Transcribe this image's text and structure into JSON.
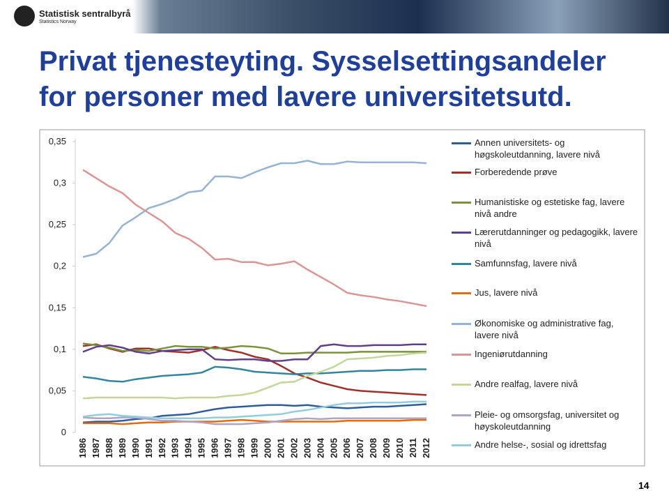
{
  "header": {
    "org": "Statistisk sentralbyrå",
    "org_en": "Statistics Norway"
  },
  "title": [
    "Privat tjenesteyting. Sysselsettingsandeler",
    "for personer med lavere universitetsutd."
  ],
  "page_number": "14",
  "chart_data": {
    "type": "line",
    "categories": [
      "1986",
      "1987",
      "1988",
      "1989",
      "1990",
      "1991",
      "1992",
      "1993",
      "1994",
      "1995",
      "1996",
      "1997",
      "1998",
      "1999",
      "2000",
      "2001",
      "2002",
      "2003",
      "2004",
      "2005",
      "2006",
      "2007",
      "2008",
      "2009",
      "2010",
      "2011",
      "2012"
    ],
    "ylim": [
      0,
      0.35
    ],
    "yticks": [
      0,
      {
        "value": 0.05,
        "label": "0,05"
      },
      {
        "value": 0.1,
        "label": "0,1"
      },
      {
        "value": 0.15,
        "label": "0,15"
      },
      {
        "value": 0.2,
        "label": "0,2"
      },
      {
        "value": 0.25,
        "label": "0,25"
      },
      {
        "value": 0.3,
        "label": "0,3"
      },
      {
        "value": 0.35,
        "label": "0,35"
      }
    ],
    "grid": false,
    "legend": "right",
    "series": [
      {
        "name": "Annen universitets- og høgskoleutdanning, lavere nivå",
        "color": "#2e5c9a",
        "values": [
          0.012,
          0.013,
          0.013,
          0.014,
          0.016,
          0.017,
          0.02,
          0.021,
          0.022,
          0.025,
          0.028,
          0.03,
          0.031,
          0.032,
          0.033,
          0.033,
          0.032,
          0.033,
          0.031,
          0.03,
          0.029,
          0.03,
          0.031,
          0.031,
          0.032,
          0.033,
          0.034
        ]
      },
      {
        "name": "Forberedende prøve",
        "color": "#a0302a",
        "values": [
          0.104,
          0.106,
          0.101,
          0.097,
          0.101,
          0.101,
          0.098,
          0.097,
          0.096,
          0.099,
          0.103,
          0.099,
          0.096,
          0.091,
          0.088,
          0.08,
          0.071,
          0.066,
          0.06,
          0.056,
          0.052,
          0.05,
          0.049,
          0.048,
          0.047,
          0.046,
          0.045
        ]
      },
      {
        "name": "Humanistiske og estetiske fag, lavere nivå andre",
        "color": "#77933c",
        "values": [
          0.107,
          0.105,
          0.102,
          0.098,
          0.099,
          0.098,
          0.101,
          0.104,
          0.103,
          0.103,
          0.101,
          0.102,
          0.104,
          0.103,
          0.101,
          0.095,
          0.095,
          0.096,
          0.096,
          0.096,
          0.096,
          0.097,
          0.097,
          0.097,
          0.097,
          0.097,
          0.097
        ]
      },
      {
        "name": "Lærerutdanninger og pedagogikk, lavere nivå",
        "color": "#5f3f8a",
        "values": [
          0.097,
          0.103,
          0.105,
          0.102,
          0.097,
          0.095,
          0.098,
          0.099,
          0.1,
          0.1,
          0.088,
          0.087,
          0.088,
          0.088,
          0.086,
          0.086,
          0.088,
          0.088,
          0.104,
          0.106,
          0.104,
          0.104,
          0.105,
          0.105,
          0.105,
          0.106,
          0.106
        ]
      },
      {
        "name": "Samfunnsfag, lavere nivå",
        "color": "#31859c",
        "values": [
          0.067,
          0.065,
          0.062,
          0.061,
          0.064,
          0.066,
          0.068,
          0.069,
          0.07,
          0.072,
          0.079,
          0.078,
          0.076,
          0.073,
          0.072,
          0.071,
          0.07,
          0.071,
          0.071,
          0.072,
          0.073,
          0.074,
          0.074,
          0.075,
          0.075,
          0.076,
          0.076
        ]
      },
      {
        "name": "Jus, lavere nivå",
        "color": "#e46c0a",
        "values": [
          0.011,
          0.011,
          0.011,
          0.01,
          0.011,
          0.012,
          0.012,
          0.013,
          0.013,
          0.013,
          0.013,
          0.014,
          0.015,
          0.014,
          0.013,
          0.013,
          0.013,
          0.013,
          0.013,
          0.013,
          0.014,
          0.014,
          0.014,
          0.014,
          0.014,
          0.015,
          0.015
        ]
      },
      {
        "name": "Økonomiske og administrative fag, lavere nivå",
        "color": "#95b3d7",
        "values": [
          0.211,
          0.215,
          0.228,
          0.249,
          0.259,
          0.27,
          0.275,
          0.281,
          0.289,
          0.291,
          0.308,
          0.308,
          0.306,
          0.313,
          0.319,
          0.324,
          0.324,
          0.327,
          0.323,
          0.323,
          0.326,
          0.325,
          0.325,
          0.325,
          0.325,
          0.325,
          0.324
        ]
      },
      {
        "name": "Ingeniørutdanning",
        "color": "#d99694",
        "values": [
          0.316,
          0.306,
          0.296,
          0.288,
          0.274,
          0.264,
          0.254,
          0.24,
          0.233,
          0.222,
          0.208,
          0.209,
          0.205,
          0.205,
          0.201,
          0.203,
          0.206,
          0.196,
          0.187,
          0.178,
          0.168,
          0.165,
          0.163,
          0.16,
          0.158,
          0.155,
          0.152
        ]
      },
      {
        "name": "Andre realfag, lavere nivå",
        "color": "#c3d69b",
        "values": [
          0.041,
          0.042,
          0.042,
          0.042,
          0.042,
          0.042,
          0.042,
          0.041,
          0.042,
          0.042,
          0.042,
          0.044,
          0.045,
          0.048,
          0.054,
          0.06,
          0.061,
          0.068,
          0.073,
          0.079,
          0.088,
          0.089,
          0.09,
          0.092,
          0.093,
          0.095,
          0.096
        ]
      },
      {
        "name": "Pleie- og omsorgsfag, universitet og høyskoleutdanning",
        "color": "#b3a2c7",
        "values": [
          0.018,
          0.017,
          0.017,
          0.018,
          0.018,
          0.016,
          0.014,
          0.014,
          0.013,
          0.012,
          0.01,
          0.01,
          0.01,
          0.011,
          0.012,
          0.014,
          0.016,
          0.017,
          0.016,
          0.017,
          0.017,
          0.017,
          0.017,
          0.017,
          0.017,
          0.017,
          0.017
        ]
      },
      {
        "name": "Andre helse-, sosial og idrettsfag",
        "color": "#93cddd",
        "values": [
          0.019,
          0.021,
          0.022,
          0.02,
          0.019,
          0.018,
          0.017,
          0.017,
          0.017,
          0.017,
          0.018,
          0.018,
          0.019,
          0.02,
          0.021,
          0.022,
          0.025,
          0.027,
          0.03,
          0.033,
          0.035,
          0.035,
          0.036,
          0.036,
          0.036,
          0.037,
          0.037
        ]
      }
    ]
  }
}
